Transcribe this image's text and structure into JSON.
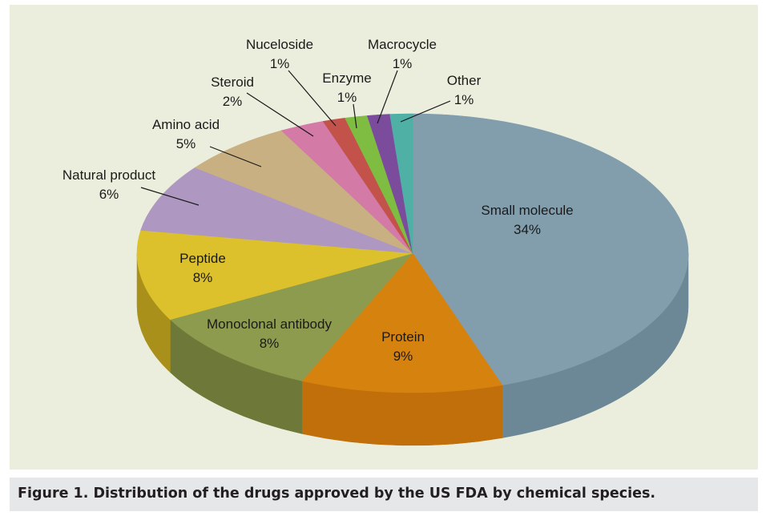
{
  "caption": "Figure 1. Distribution of the drugs approved by the US FDA by chemical species.",
  "chart_data": {
    "type": "pie",
    "title": "",
    "slices": [
      {
        "label": "Small molecule",
        "value": 34,
        "value_label": "34%",
        "color": "#829ead",
        "side_color": "#6c8796"
      },
      {
        "label": "Protein",
        "value": 9,
        "value_label": "9%",
        "color": "#d6820f",
        "side_color": "#c06f0b"
      },
      {
        "label": "Monoclonal antibody",
        "value": 8,
        "value_label": "8%",
        "color": "#8d9b4f",
        "side_color": "#6e7939"
      },
      {
        "label": "Peptide",
        "value": 8,
        "value_label": "8%",
        "color": "#dcc12c",
        "side_color": "#a8901b"
      },
      {
        "label": "Natural product",
        "value": 6,
        "value_label": "6%",
        "color": "#ae98c2",
        "side_color": "#8f7aa3"
      },
      {
        "label": "Amino acid",
        "value": 5,
        "value_label": "5%",
        "color": "#c8b083",
        "side_color": "#a89066"
      },
      {
        "label": "Steroid",
        "value": 2,
        "value_label": "2%",
        "color": "#d47aa6",
        "side_color": "#b35e88"
      },
      {
        "label": "Nuceloside",
        "value": 1,
        "value_label": "1%",
        "color": "#c2524a",
        "side_color": "#a03e37"
      },
      {
        "label": "Enzyme",
        "value": 1,
        "value_label": "1%",
        "color": "#7ebc42",
        "side_color": "#619a2c"
      },
      {
        "label": "Macrocycle",
        "value": 1,
        "value_label": "1%",
        "color": "#7c4c9c",
        "side_color": "#5f3780"
      },
      {
        "label": "Other",
        "value": 1,
        "value_label": "1%",
        "color": "#4fb0a5",
        "side_color": "#388e84"
      }
    ]
  }
}
